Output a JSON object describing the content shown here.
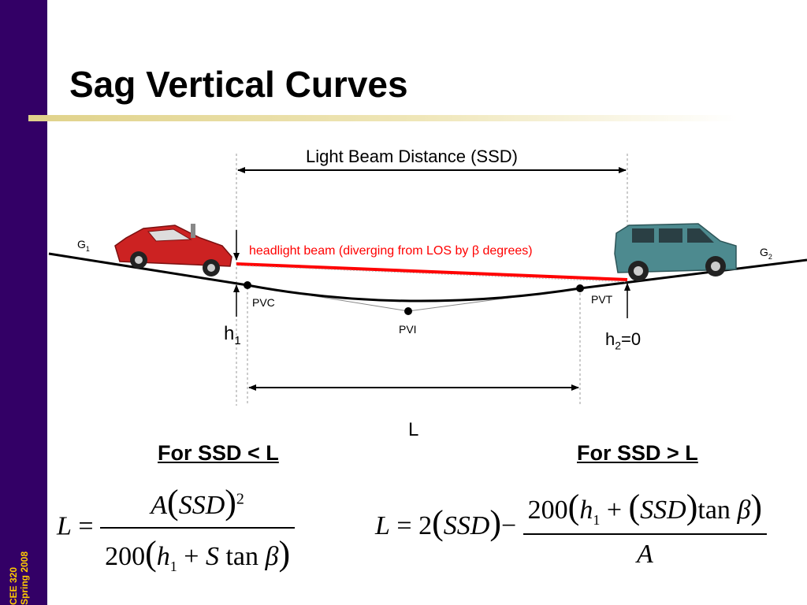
{
  "slide": {
    "title": "Sag Vertical Curves",
    "sidebar_text": [
      "CEE 320",
      "Spring 2008"
    ],
    "colors": {
      "sidebar": "#330066",
      "sidebar_text": "#ffcc00",
      "beam": "#ff0000"
    }
  },
  "diagram": {
    "beam_distance_label": "Light Beam Distance (SSD)",
    "headlight_label": "headlight beam (diverging from LOS by β degrees)",
    "g1": {
      "base": "G",
      "sub": "1"
    },
    "g2": {
      "base": "G",
      "sub": "2"
    },
    "pvc": "PVC",
    "pvi": "PVI",
    "pvt": "PVT",
    "h1": {
      "base": "h",
      "sub": "1"
    },
    "h2": {
      "base": "h",
      "sub": "2",
      "suffix": "=0"
    },
    "length_label": "L",
    "left_vehicle": "red-car-icon",
    "right_vehicle": "teal-suv-icon"
  },
  "formulas": {
    "left": {
      "heading": "For SSD < L",
      "lhs": "L",
      "eq": "=",
      "num_A": "A",
      "num_ssd": "SSD",
      "num_exp": "2",
      "den_200": "200",
      "den_h": "h",
      "den_h_sub": "1",
      "den_plus": "+",
      "den_s": "S",
      "den_tan": "tan",
      "den_beta": "β"
    },
    "right": {
      "heading": "For SSD > L",
      "lhs": "L",
      "eq": "=",
      "coef": "2",
      "ssd": "SSD",
      "minus": "−",
      "num_200": "200",
      "num_h": "h",
      "num_h_sub": "1",
      "num_plus": "+",
      "num_ssd": "SSD",
      "num_tan": "tan",
      "num_beta": "β",
      "den_A": "A"
    }
  }
}
